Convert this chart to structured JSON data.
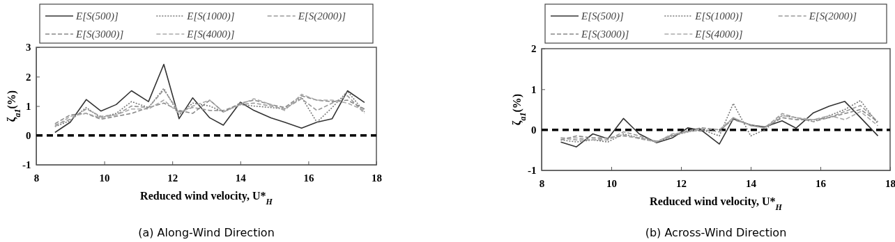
{
  "chart_data": [
    {
      "type": "line",
      "xlabel": "Reduced wind velocity, U*$_{H}$",
      "ylabel": "ζ$_{a1}$(%)",
      "annotations": [
        "(a) Along-Wind Direction"
      ],
      "x": [
        8.55,
        9.0,
        9.47,
        9.9,
        10.35,
        10.8,
        11.3,
        11.75,
        12.2,
        12.6,
        13.1,
        13.5,
        14.0,
        14.4,
        14.9,
        15.3,
        15.8,
        16.25,
        16.7,
        17.15,
        17.65
      ],
      "xlim": [
        8,
        18
      ],
      "xticks": [
        8,
        10,
        12,
        14,
        16,
        18
      ],
      "ylim": [
        -1,
        3
      ],
      "yticks": [
        -1,
        0,
        1,
        2,
        3
      ],
      "legend": "top",
      "grid": false,
      "ref_lines": [
        {
          "axis": "y",
          "value": 0,
          "color": "#000000",
          "line_style": "dashed"
        }
      ],
      "series": [
        {
          "name": "E[S(500)]",
          "color": "#333333",
          "line_style": "solid",
          "values": [
            0.1,
            0.45,
            1.22,
            0.83,
            1.05,
            1.52,
            1.15,
            2.42,
            0.57,
            1.28,
            0.6,
            0.35,
            1.13,
            0.85,
            0.6,
            0.45,
            0.25,
            0.45,
            0.57,
            1.52,
            1.12
          ]
        },
        {
          "name": "E[S(1000)]",
          "color": "#777777",
          "line_style": "dotted",
          "values": [
            0.3,
            0.5,
            0.95,
            0.6,
            0.75,
            1.15,
            0.95,
            1.6,
            0.7,
            1.1,
            1.0,
            0.8,
            1.05,
            1.0,
            0.95,
            0.9,
            1.3,
            0.45,
            0.95,
            1.5,
            0.8
          ]
        },
        {
          "name": "E[S(2000)]",
          "color": "#999999",
          "line_style": "dashed",
          "values": [
            0.35,
            0.55,
            0.9,
            0.65,
            0.7,
            1.0,
            0.95,
            1.55,
            0.8,
            0.95,
            0.85,
            0.85,
            1.05,
            1.1,
            1.0,
            0.9,
            1.25,
            0.85,
            1.1,
            1.35,
            0.75
          ]
        },
        {
          "name": "E[S(3000)]",
          "color": "#888888",
          "line_style": "dashed",
          "values": [
            0.4,
            0.7,
            0.75,
            0.55,
            0.65,
            0.75,
            0.95,
            1.1,
            0.85,
            0.75,
            1.2,
            0.8,
            1.1,
            1.2,
            1.05,
            0.95,
            1.35,
            1.2,
            1.15,
            1.2,
            0.9
          ]
        },
        {
          "name": "E[S(4000)]",
          "color": "#aaaaaa",
          "line_style": "dashed",
          "values": [
            0.3,
            0.65,
            0.75,
            0.6,
            0.7,
            0.9,
            0.9,
            1.2,
            0.75,
            1.0,
            1.2,
            0.8,
            1.05,
            1.25,
            1.05,
            0.85,
            1.4,
            1.2,
            1.2,
            1.1,
            0.85
          ]
        }
      ]
    },
    {
      "type": "line",
      "xlabel": "Reduced wind velocity, U*$_{H}$",
      "ylabel": "ζ$_{a1}$(%)",
      "annotations": [
        "(b) Across-Wind Direction"
      ],
      "x": [
        8.55,
        9.0,
        9.47,
        9.9,
        10.35,
        10.8,
        11.3,
        11.75,
        12.2,
        12.6,
        13.1,
        13.5,
        14.0,
        14.4,
        14.9,
        15.3,
        15.8,
        16.25,
        16.7,
        17.15,
        17.65
      ],
      "xlim": [
        8,
        18
      ],
      "xticks": [
        8,
        10,
        12,
        14,
        16,
        18
      ],
      "ylim": [
        -1,
        2
      ],
      "yticks": [
        -1,
        0,
        1,
        2
      ],
      "legend": "top",
      "grid": false,
      "ref_lines": [
        {
          "axis": "y",
          "value": 0,
          "color": "#000000",
          "line_style": "dashed"
        }
      ],
      "series": [
        {
          "name": "E[S(500)]",
          "color": "#333333",
          "line_style": "solid",
          "values": [
            -0.3,
            -0.42,
            -0.1,
            -0.22,
            0.28,
            -0.1,
            -0.32,
            -0.2,
            0.05,
            -0.02,
            -0.35,
            0.27,
            0.12,
            0.07,
            0.22,
            0.04,
            0.42,
            0.58,
            0.7,
            0.3,
            -0.15
          ]
        },
        {
          "name": "E[S(1000)]",
          "color": "#777777",
          "line_style": "dotted",
          "values": [
            -0.25,
            -0.3,
            -0.25,
            -0.3,
            -0.1,
            -0.2,
            -0.3,
            -0.15,
            -0.05,
            0.0,
            -0.15,
            0.65,
            -0.15,
            0.0,
            0.35,
            0.3,
            0.2,
            0.35,
            0.5,
            0.72,
            0.15
          ]
        },
        {
          "name": "E[S(2000)]",
          "color": "#999999",
          "line_style": "dashed",
          "values": [
            -0.2,
            -0.25,
            -0.25,
            -0.25,
            -0.05,
            -0.15,
            -0.3,
            -0.12,
            -0.05,
            0.0,
            -0.05,
            0.3,
            0.1,
            0.05,
            0.4,
            0.3,
            0.2,
            0.3,
            0.45,
            0.6,
            0.2
          ]
        },
        {
          "name": "E[S(3000)]",
          "color": "#888888",
          "line_style": "dashed",
          "values": [
            -0.25,
            -0.15,
            -0.2,
            -0.2,
            -0.15,
            -0.2,
            -0.28,
            -0.15,
            -0.02,
            0.05,
            0.0,
            0.25,
            0.12,
            0.05,
            0.3,
            0.25,
            0.25,
            0.3,
            0.4,
            0.5,
            0.2
          ]
        },
        {
          "name": "E[S(4000)]",
          "color": "#aaaaaa",
          "line_style": "dashed",
          "values": [
            -0.2,
            -0.2,
            -0.25,
            -0.2,
            -0.12,
            -0.22,
            -0.3,
            -0.1,
            -0.05,
            0.03,
            0.0,
            0.3,
            0.1,
            0.05,
            0.35,
            0.3,
            0.25,
            0.35,
            0.25,
            0.45,
            0.1
          ]
        }
      ]
    }
  ]
}
